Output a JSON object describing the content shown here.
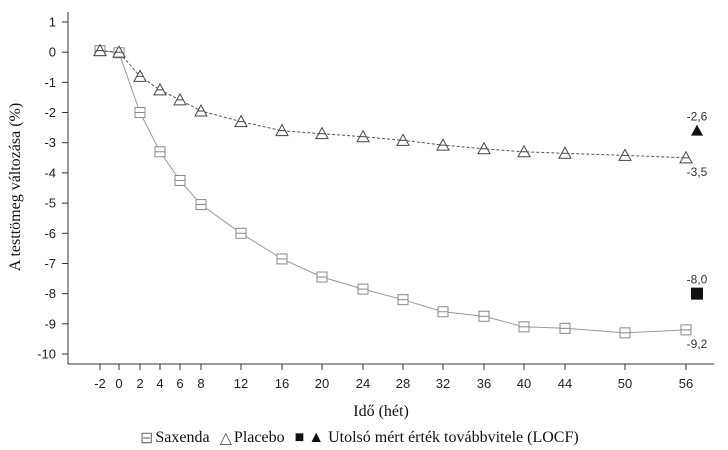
{
  "chart_data": {
    "type": "line",
    "xlabel": "Idő (hét)",
    "ylabel": "A testtömeg változása (%)",
    "x_ticks": [
      "-2",
      "0",
      "2",
      "4",
      "6",
      "8",
      "12",
      "16",
      "20",
      "24",
      "28",
      "32",
      "36",
      "40",
      "44",
      "50",
      "56"
    ],
    "y_ticks": [
      "1",
      "0",
      "-1",
      "-2",
      "-3",
      "-4",
      "-5",
      "-6",
      "-7",
      "-8",
      "-9",
      "-10"
    ],
    "ylim": [
      -10,
      1
    ],
    "grid": false,
    "legend_position": "bottom",
    "series": [
      {
        "name": "Saxenda",
        "marker": "square-open",
        "line_style": "solid",
        "color": "#999999",
        "values": [
          0.05,
          -0.02,
          -2.0,
          -3.3,
          -4.25,
          -5.05,
          -6.0,
          -6.85,
          -7.45,
          -7.85,
          -8.2,
          -8.6,
          -8.75,
          -9.1,
          -9.15,
          -9.3,
          -9.2
        ]
      },
      {
        "name": "Placebo",
        "marker": "triangle-open",
        "line_style": "dashed",
        "color": "#555555",
        "values": [
          0.05,
          0.0,
          -0.8,
          -1.25,
          -1.58,
          -1.95,
          -2.3,
          -2.6,
          -2.7,
          -2.8,
          -2.92,
          -3.08,
          -3.2,
          -3.3,
          -3.35,
          -3.42,
          -3.5
        ]
      }
    ],
    "locf": {
      "name": "Utolsó mért érték továbbvitele (LOCF)",
      "points": [
        {
          "series": "Saxenda",
          "marker": "square-filled",
          "value": -8.0
        },
        {
          "series": "Placebo",
          "marker": "triangle-filled",
          "value": -2.6
        }
      ]
    },
    "annotations": [
      {
        "text": "-2,6",
        "value": -2.6
      },
      {
        "text": "-3,5",
        "value": -3.5
      },
      {
        "text": "-8,0",
        "value": -8.0
      },
      {
        "text": "-9,2",
        "value": -9.2
      }
    ]
  },
  "legend": {
    "saxenda_symbol": "⊟",
    "saxenda_label": "Saxenda",
    "placebo_symbol": "△",
    "placebo_label": "Placebo",
    "locf_symbols": "■ ▲",
    "locf_label": "Utolsó mért érték továbbvitele (LOCF)"
  }
}
